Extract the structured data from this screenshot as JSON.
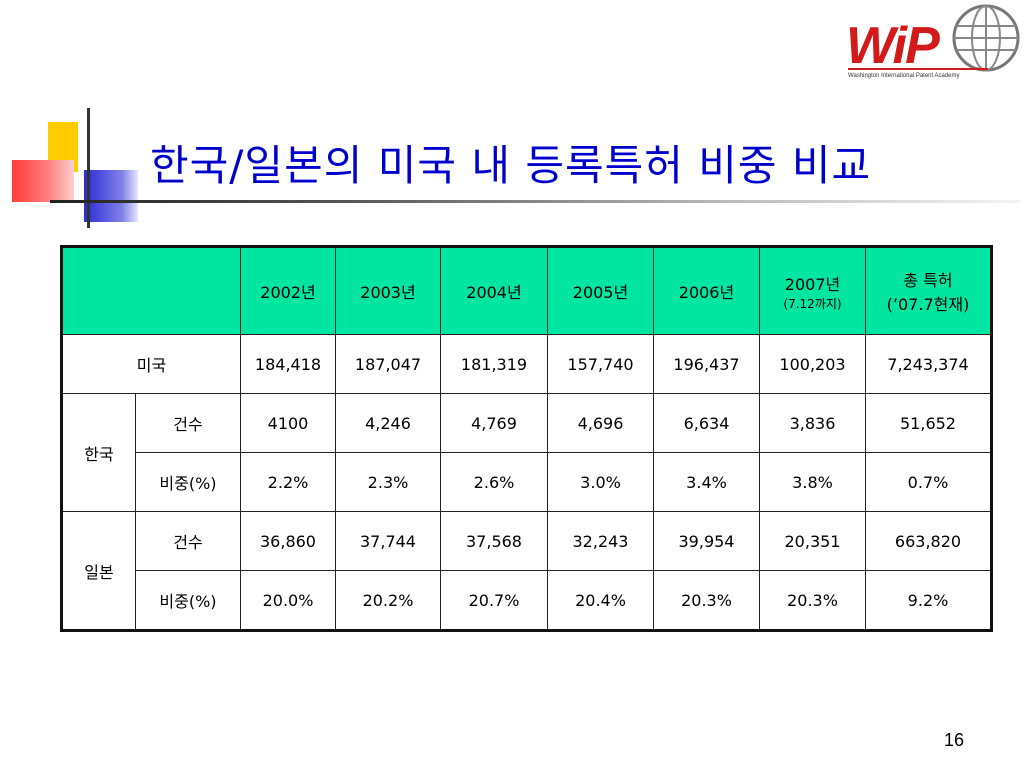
{
  "slide": {
    "title": "한국/일본의 미국 내 등록특허 비중 비교",
    "page_number": "16"
  },
  "logo": {
    "text": "WiP",
    "subtitle": "Washington International Patent Academy"
  },
  "table": {
    "header": {
      "y2002": "2002년",
      "y2003": "2003년",
      "y2004": "2004년",
      "y2005": "2005년",
      "y2006": "2006년",
      "y2007": "2007년",
      "y2007_sub": "(7.12까지)",
      "total": "총 특허",
      "total_sub": "(’07.7현재)"
    },
    "usa": {
      "label": "미국",
      "values": [
        "184,418",
        "187,047",
        "181,319",
        "157,740",
        "196,437",
        "100,203",
        "7,243,374"
      ]
    },
    "korea": {
      "label": "한국",
      "count_label": "건수",
      "counts": [
        "4100",
        "4,246",
        "4,769",
        "4,696",
        "6,634",
        "3,836",
        "51,652"
      ],
      "ratio_label": "비중(%)",
      "ratios": [
        "2.2%",
        "2.3%",
        "2.6%",
        "3.0%",
        "3.4%",
        "3.8%",
        "0.7%"
      ]
    },
    "japan": {
      "label": "일본",
      "count_label": "건수",
      "counts": [
        "36,860",
        "37,744",
        "37,568",
        "32,243",
        "39,954",
        "20,351",
        "663,820"
      ],
      "ratio_label": "비중(%)",
      "ratios": [
        "20.0%",
        "20.2%",
        "20.7%",
        "20.4%",
        "20.3%",
        "20.3%",
        "9.2%"
      ]
    }
  },
  "colors": {
    "title": "#0000cc",
    "header_bg": "#00e6a0",
    "logo_red": "#d21a1a"
  }
}
